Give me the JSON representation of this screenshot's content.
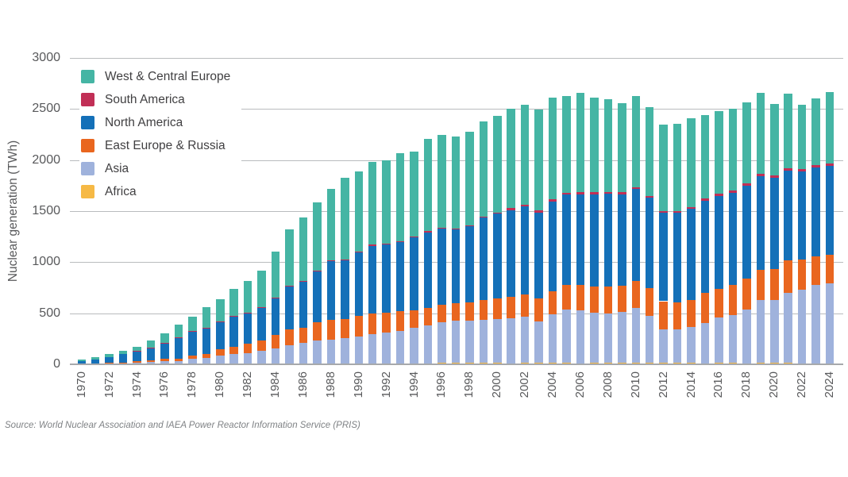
{
  "chart_data": {
    "type": "bar",
    "stacked": true,
    "ylabel": "Nuclear generation (TWh)",
    "unit": "TWh",
    "ylim": [
      0,
      3000
    ],
    "y_ticks": [
      0,
      500,
      1000,
      1500,
      2000,
      2500,
      3000
    ],
    "grid": true,
    "legend_position": "top-left-inside",
    "source": "Source: World Nuclear Association and IAEA Power Reactor Information Service (PRIS)",
    "years": [
      1970,
      1971,
      1972,
      1973,
      1974,
      1975,
      1976,
      1977,
      1978,
      1979,
      1980,
      1981,
      1982,
      1983,
      1984,
      1985,
      1986,
      1987,
      1988,
      1989,
      1990,
      1991,
      1992,
      1993,
      1994,
      1995,
      1996,
      1997,
      1998,
      1999,
      2000,
      2001,
      2002,
      2003,
      2004,
      2005,
      2006,
      2007,
      2008,
      2009,
      2010,
      2011,
      2012,
      2013,
      2014,
      2015,
      2016,
      2017,
      2018,
      2019,
      2020,
      2021,
      2022,
      2023,
      2024
    ],
    "x_tick_labels": [
      1970,
      1972,
      1974,
      1976,
      1978,
      1980,
      1982,
      1984,
      1986,
      1988,
      1990,
      1992,
      1994,
      1996,
      1998,
      2000,
      2002,
      2004,
      2006,
      2008,
      2010,
      2012,
      2014,
      2016,
      2018,
      2020,
      2022,
      2024
    ],
    "stack_order_note": "series listed bottom-to-top of stack; legend shown top-to-bottom is the reverse",
    "series": [
      {
        "name": "Africa",
        "color": "#f6b945",
        "values": [
          0,
          0,
          0,
          0,
          0,
          0,
          0,
          0,
          0,
          0,
          0,
          0,
          0,
          0,
          4,
          5,
          8,
          7,
          10,
          11,
          8,
          9,
          9,
          7,
          10,
          11,
          12,
          12,
          14,
          13,
          13,
          11,
          12,
          13,
          14,
          12,
          10,
          13,
          13,
          12,
          12,
          13,
          12,
          14,
          14,
          11,
          15,
          15,
          11,
          14,
          12,
          12,
          10,
          8,
          11
        ]
      },
      {
        "name": "Asia",
        "color": "#9fb2dc",
        "values": [
          4,
          6,
          9,
          10,
          18,
          24,
          32,
          30,
          52,
          60,
          85,
          98,
          112,
          130,
          155,
          183,
          200,
          228,
          232,
          242,
          268,
          290,
          300,
          323,
          350,
          371,
          400,
          415,
          410,
          420,
          430,
          440,
          455,
          405,
          472,
          523,
          518,
          489,
          485,
          502,
          540,
          460,
          331,
          325,
          351,
          396,
          440,
          467,
          525,
          616,
          621,
          687,
          719,
          769,
          781
        ]
      },
      {
        "name": "East Europe & Russia",
        "color": "#e9661f",
        "values": [
          3,
          4,
          6,
          8,
          11,
          15,
          19,
          25,
          30,
          40,
          60,
          75,
          88,
          102,
          125,
          155,
          150,
          175,
          192,
          192,
          198,
          198,
          196,
          194,
          170,
          170,
          172,
          175,
          180,
          195,
          200,
          210,
          220,
          225,
          232,
          246,
          251,
          257,
          263,
          258,
          266,
          270,
          275,
          266,
          264,
          291,
          284,
          296,
          301,
          297,
          301,
          321,
          298,
          282,
          277
        ]
      },
      {
        "name": "North America",
        "color": "#1470b8",
        "values": [
          22,
          38,
          53,
          80,
          100,
          125,
          155,
          205,
          240,
          255,
          275,
          295,
          300,
          320,
          360,
          420,
          455,
          500,
          575,
          575,
          620,
          665,
          668,
          675,
          710,
          740,
          745,
          716,
          750,
          807,
          831,
          847,
          858,
          844,
          879,
          880,
          884,
          907,
          908,
          893,
          898,
          887,
          864,
          879,
          893,
          904,
          910,
          900,
          914,
          917,
          893,
          876,
          864,
          870,
          873
        ]
      },
      {
        "name": "South America",
        "color": "#c12f56",
        "values": [
          0,
          0,
          0,
          0,
          1,
          2,
          2,
          2,
          2,
          3,
          2,
          3,
          2,
          5,
          7,
          9,
          7,
          7,
          6,
          7,
          9,
          9,
          9,
          8,
          8,
          10,
          10,
          11,
          10,
          10,
          11,
          21,
          19,
          20,
          19,
          16,
          21,
          19,
          21,
          20,
          21,
          21,
          22,
          20,
          20,
          21,
          23,
          21,
          21,
          24,
          24,
          25,
          22,
          23,
          25
        ]
      },
      {
        "name": "West & Central Europe",
        "color": "#45b5a4",
        "values": [
          16,
          22,
          32,
          37,
          45,
          64,
          92,
          128,
          146,
          202,
          218,
          269,
          313,
          358,
          449,
          548,
          620,
          668,
          705,
          798,
          787,
          809,
          818,
          858,
          832,
          908,
          910,
          900,
          910,
          930,
          945,
          970,
          975,
          985,
          995,
          950,
          977,
          923,
          908,
          873,
          893,
          867,
          842,
          855,
          868,
          818,
          804,
          807,
          791,
          789,
          702,
          732,
          632,
          650,
          700
        ]
      }
    ],
    "legend": [
      "West & Central Europe",
      "South America",
      "North America",
      "East Europe & Russia",
      "Asia",
      "Africa"
    ],
    "colors": {
      "grid": "#b9bcbe",
      "axis": "#a7a9ac",
      "tick_text": "#58595b",
      "legend_text": "#414042",
      "source_text": "#7f8285"
    }
  }
}
